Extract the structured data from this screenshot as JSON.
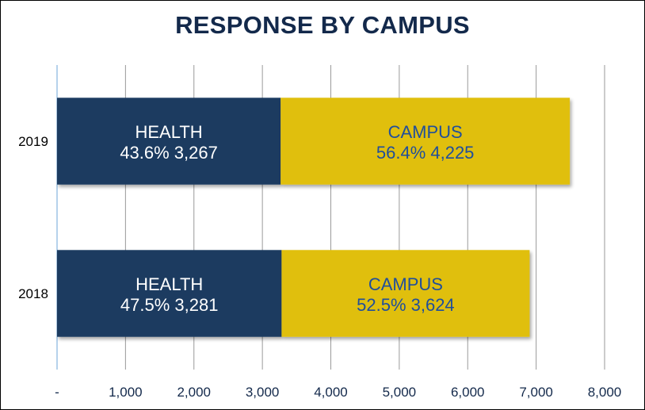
{
  "chart_data": {
    "type": "bar",
    "orientation": "horizontal",
    "stacked": true,
    "title": "RESPONSE BY CAMPUS",
    "categories": [
      "2019",
      "2018"
    ],
    "series": [
      {
        "name": "HEALTH",
        "color": "#1b3a61",
        "label_color": "#ffffff",
        "values": [
          3267,
          3281
        ],
        "percents": [
          "43.6%",
          "47.5%"
        ],
        "value_labels": [
          "3,267",
          "3,281"
        ]
      },
      {
        "name": "CAMPUS",
        "color": "#e0bf0a",
        "label_color": "#1f4e9c",
        "values": [
          4225,
          3624
        ],
        "percents": [
          "56.4%",
          "52.5%"
        ],
        "value_labels": [
          "4,225",
          "3,624"
        ]
      }
    ],
    "xlim": [
      0,
      8000
    ],
    "xticks": [
      0,
      1000,
      2000,
      3000,
      4000,
      5000,
      6000,
      7000,
      8000
    ],
    "xtick_labels": [
      "-",
      "1,000",
      "2,000",
      "3,000",
      "4,000",
      "5,000",
      "6,000",
      "7,000",
      "8,000"
    ],
    "grid": true,
    "legend": "none",
    "xlabel": "",
    "ylabel": ""
  },
  "colors": {
    "title": "#13294b",
    "tick_label": "#13294b",
    "gridline": "#9a9a9a",
    "axis_line": "#9dc3e6"
  }
}
